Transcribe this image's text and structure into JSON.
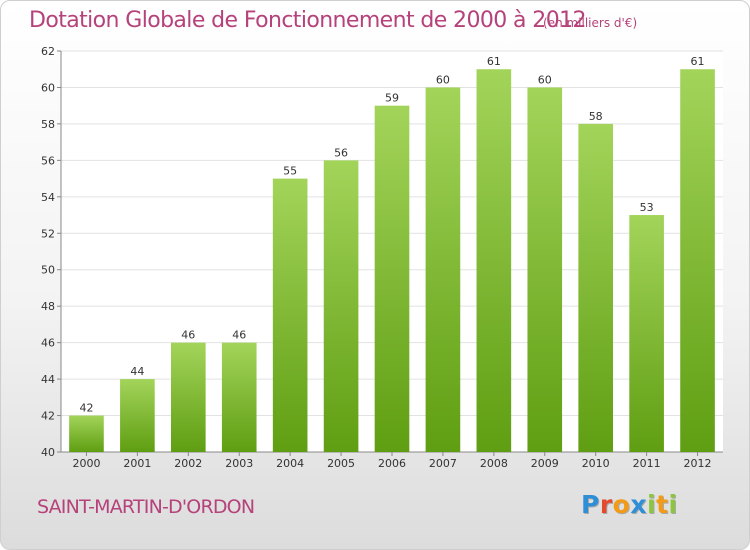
{
  "header": {
    "title": "Dotation Globale de Fonctionnement de 2000 à 2012",
    "subtitle": "(en milliers d'€)"
  },
  "footer": {
    "commune": "SAINT-MARTIN-D'ORDON",
    "logo_letters": [
      "P",
      "r",
      "o",
      "x",
      "i",
      "t",
      "i"
    ],
    "logo_colors": [
      "#2e8fd6",
      "#e2492d",
      "#f29b17",
      "#2e8fd6",
      "#8cc63f",
      "#f29b17",
      "#8cc63f"
    ]
  },
  "chart_data": {
    "type": "bar",
    "categories": [
      "2000",
      "2001",
      "2002",
      "2003",
      "2004",
      "2005",
      "2006",
      "2007",
      "2008",
      "2009",
      "2010",
      "2011",
      "2012"
    ],
    "values": [
      42,
      44,
      46,
      46,
      55,
      56,
      59,
      60,
      61,
      60,
      58,
      53,
      61
    ],
    "ylim": [
      40,
      62
    ],
    "yticks": [
      40,
      42,
      44,
      46,
      48,
      50,
      52,
      54,
      56,
      58,
      60,
      62
    ],
    "grid": true,
    "bar_color_top": "#a3d45a",
    "bar_color_bottom": "#5f9e12",
    "title_color": "#b5427a"
  }
}
